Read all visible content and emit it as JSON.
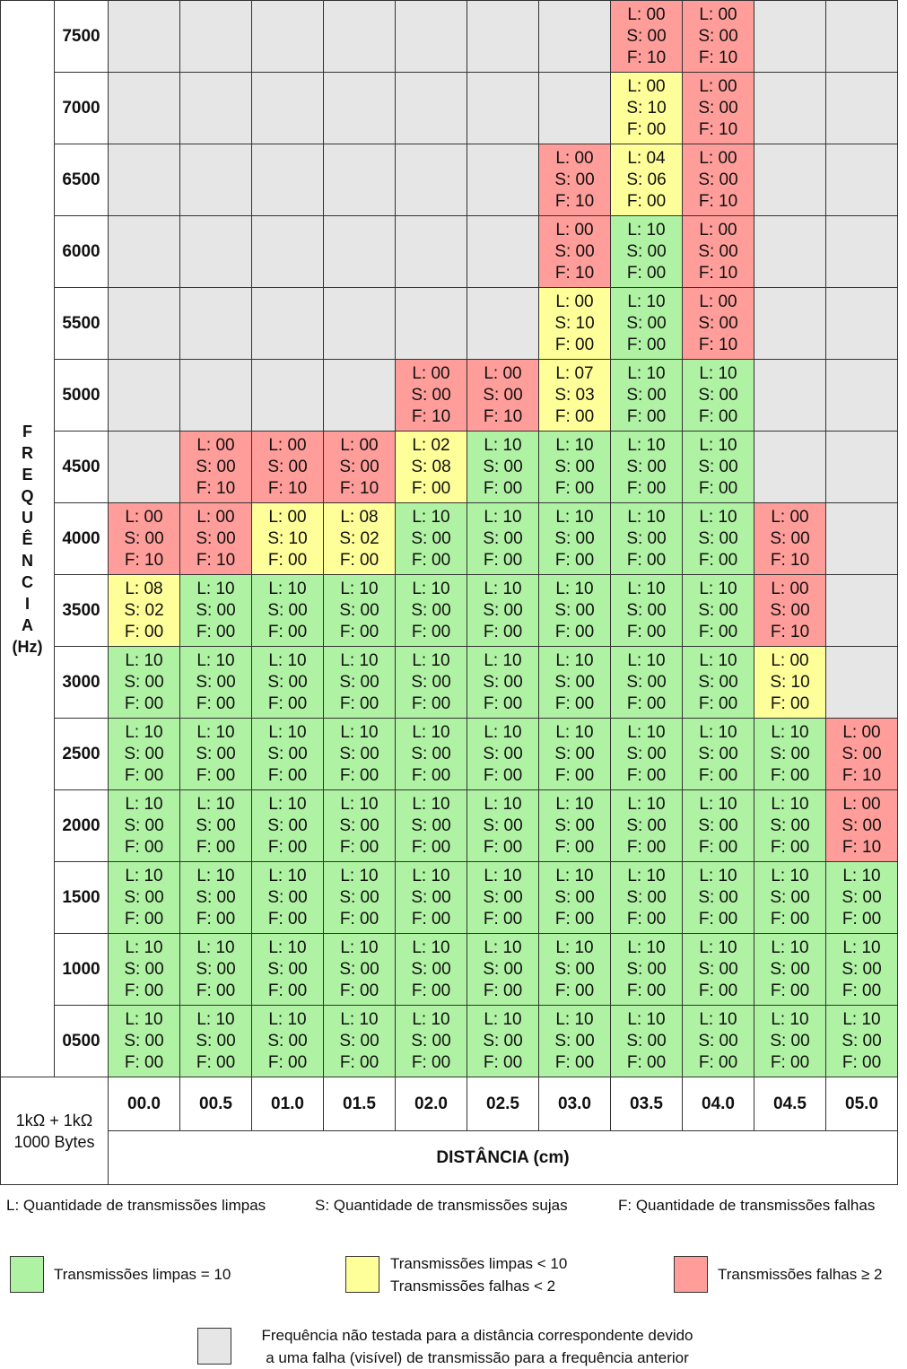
{
  "y_title_letters": [
    "F",
    "R",
    "E",
    "Q",
    "U",
    "Ê",
    "N",
    "C",
    "I",
    "A",
    "(Hz)"
  ],
  "frequencies": [
    "7500",
    "7000",
    "6500",
    "6000",
    "5500",
    "5000",
    "4500",
    "4000",
    "3500",
    "3000",
    "2500",
    "2000",
    "1500",
    "1000",
    "0500"
  ],
  "distances": [
    "00.0",
    "00.5",
    "01.0",
    "01.5",
    "02.0",
    "02.5",
    "03.0",
    "03.5",
    "04.0",
    "04.5",
    "05.0"
  ],
  "x_title": "DISTÂNCIA (cm)",
  "corner": {
    "line1": "1kΩ + 1kΩ",
    "line2": "1000 Bytes"
  },
  "status_colors": {
    "green": "#b0f2a4",
    "yellow": "#ffff99",
    "red": "#ff9d9a",
    "grey": "#e6e6e6"
  },
  "rows": [
    [
      "-",
      "-",
      "-",
      "-",
      "-",
      "-",
      "-",
      "00/00/10",
      "00/00/10",
      "-",
      "-"
    ],
    [
      "-",
      "-",
      "-",
      "-",
      "-",
      "-",
      "-",
      "00/10/00",
      "00/00/10",
      "-",
      "-"
    ],
    [
      "-",
      "-",
      "-",
      "-",
      "-",
      "-",
      "00/00/10",
      "04/06/00",
      "00/00/10",
      "-",
      "-"
    ],
    [
      "-",
      "-",
      "-",
      "-",
      "-",
      "-",
      "00/00/10",
      "10/00/00",
      "00/00/10",
      "-",
      "-"
    ],
    [
      "-",
      "-",
      "-",
      "-",
      "-",
      "-",
      "00/10/00",
      "10/00/00",
      "00/00/10",
      "-",
      "-"
    ],
    [
      "-",
      "-",
      "-",
      "-",
      "00/00/10",
      "00/00/10",
      "07/03/00",
      "10/00/00",
      "10/00/00",
      "-",
      "-"
    ],
    [
      "-",
      "00/00/10",
      "00/00/10",
      "00/00/10",
      "02/08/00",
      "10/00/00",
      "10/00/00",
      "10/00/00",
      "10/00/00",
      "-",
      "-"
    ],
    [
      "00/00/10",
      "00/00/10",
      "00/10/00",
      "08/02/00",
      "10/00/00",
      "10/00/00",
      "10/00/00",
      "10/00/00",
      "10/00/00",
      "00/00/10",
      "-"
    ],
    [
      "08/02/00",
      "10/00/00",
      "10/00/00",
      "10/00/00",
      "10/00/00",
      "10/00/00",
      "10/00/00",
      "10/00/00",
      "10/00/00",
      "00/00/10",
      "-"
    ],
    [
      "10/00/00",
      "10/00/00",
      "10/00/00",
      "10/00/00",
      "10/00/00",
      "10/00/00",
      "10/00/00",
      "10/00/00",
      "10/00/00",
      "00/10/00",
      "-"
    ],
    [
      "10/00/00",
      "10/00/00",
      "10/00/00",
      "10/00/00",
      "10/00/00",
      "10/00/00",
      "10/00/00",
      "10/00/00",
      "10/00/00",
      "10/00/00",
      "00/00/10"
    ],
    [
      "10/00/00",
      "10/00/00",
      "10/00/00",
      "10/00/00",
      "10/00/00",
      "10/00/00",
      "10/00/00",
      "10/00/00",
      "10/00/00",
      "10/00/00",
      "00/00/10"
    ],
    [
      "10/00/00",
      "10/00/00",
      "10/00/00",
      "10/00/00",
      "10/00/00",
      "10/00/00",
      "10/00/00",
      "10/00/00",
      "10/00/00",
      "10/00/00",
      "10/00/00"
    ],
    [
      "10/00/00",
      "10/00/00",
      "10/00/00",
      "10/00/00",
      "10/00/00",
      "10/00/00",
      "10/00/00",
      "10/00/00",
      "10/00/00",
      "10/00/00",
      "10/00/00"
    ],
    [
      "10/00/00",
      "10/00/00",
      "10/00/00",
      "10/00/00",
      "10/00/00",
      "10/00/00",
      "10/00/00",
      "10/00/00",
      "10/00/00",
      "10/00/00",
      "10/00/00"
    ]
  ],
  "legend": {
    "L": "L: Quantidade de transmissões limpas",
    "S": "S: Quantidade de transmissões sujas",
    "F": "F: Quantidade de transmissões falhas",
    "green": "Transmissões limpas = 10",
    "yellow_line1": "Transmissões limpas < 10",
    "yellow_line2": "Transmissões falhas  < 2",
    "red": "Transmissões falhas ≥ 2",
    "grey_line1": "Frequência não testada para a distância correspondente devido",
    "grey_line2": "a uma falha (visível) de transmissão para a frequência anterior"
  }
}
